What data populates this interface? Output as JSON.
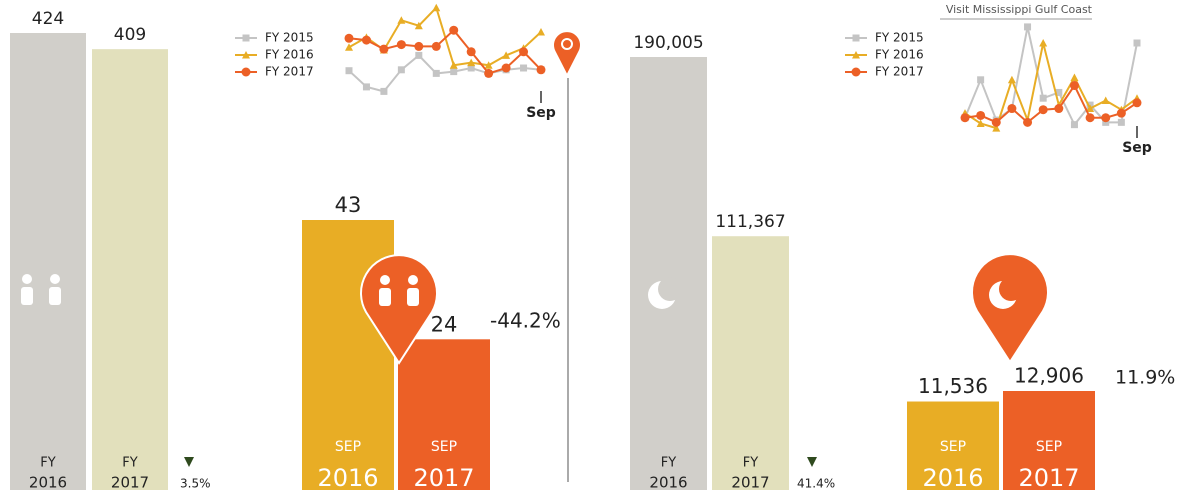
{
  "header": {
    "title": "Visit Mississippi Gulf Coast"
  },
  "chart_data": [
    {
      "type": "bar",
      "categories": [
        [
          "FY",
          "2016"
        ],
        [
          "FY",
          "2017"
        ]
      ],
      "values": [
        424,
        409
      ],
      "colors": [
        "#d1cfca",
        "#e2e0bc"
      ],
      "annotation": "3.5%",
      "direction": "down"
    },
    {
      "type": "bar",
      "categories": [
        [
          "SEP",
          "2016"
        ],
        [
          "SEP",
          "2017"
        ]
      ],
      "values": [
        43,
        24
      ],
      "colors": [
        "#e8ad25",
        "#ec6026"
      ],
      "annotation": "-44.2%"
    },
    {
      "type": "line",
      "categories": [
        null,
        null,
        null,
        null,
        null,
        null,
        null,
        null,
        null,
        null,
        null,
        "Sep"
      ],
      "ylim": [
        0,
        100
      ],
      "series": [
        {
          "name": "FY 2015",
          "color": "#c4c4c4",
          "marker": "square",
          "values": [
            27,
            9,
            4,
            28,
            44,
            24,
            26,
            30,
            24,
            28,
            30,
            28
          ]
        },
        {
          "name": "FY 2016",
          "color": "#e8ad25",
          "marker": "triangle",
          "values": [
            53,
            64,
            50,
            83,
            77,
            97,
            33,
            36,
            33,
            44,
            52,
            70
          ]
        },
        {
          "name": "FY 2017",
          "color": "#ec6026",
          "marker": "circle",
          "values": [
            63,
            61,
            51,
            56,
            54,
            54,
            72,
            48,
            24,
            30,
            48,
            28
          ]
        }
      ]
    },
    {
      "type": "bar",
      "categories": [
        [
          "FY",
          "2016"
        ],
        [
          "FY",
          "2017"
        ]
      ],
      "values": [
        190005,
        111367
      ],
      "value_labels": [
        "190,005",
        "111,367"
      ],
      "colors": [
        "#d1cfca",
        "#e2e0bc"
      ],
      "annotation": "41.4%",
      "direction": "down"
    },
    {
      "type": "bar",
      "categories": [
        [
          "SEP",
          "2016"
        ],
        [
          "SEP",
          "2017"
        ]
      ],
      "values": [
        11536,
        12906
      ],
      "value_labels": [
        "11,536",
        "12,906"
      ],
      "colors": [
        "#e8ad25",
        "#ec6026"
      ],
      "annotation": "11.9%"
    },
    {
      "type": "line",
      "categories": [
        null,
        null,
        null,
        null,
        null,
        null,
        null,
        null,
        null,
        null,
        null,
        "Sep"
      ],
      "ylim": [
        0,
        100
      ],
      "series": [
        {
          "name": "FY 2015",
          "color": "#c4c4c4",
          "marker": "square",
          "values": [
            15,
            48,
            13,
            23,
            94,
            32,
            37,
            9,
            26,
            11,
            11,
            80
          ]
        },
        {
          "name": "FY 2016",
          "color": "#e8ad25",
          "marker": "triangle",
          "values": [
            19,
            10,
            6,
            48,
            13,
            80,
            26,
            50,
            23,
            30,
            22,
            32
          ]
        },
        {
          "name": "FY 2017",
          "color": "#ec6026",
          "marker": "circle",
          "values": [
            15,
            17,
            11,
            23,
            11,
            22,
            23,
            43,
            15,
            15,
            19,
            28
          ]
        }
      ]
    }
  ]
}
